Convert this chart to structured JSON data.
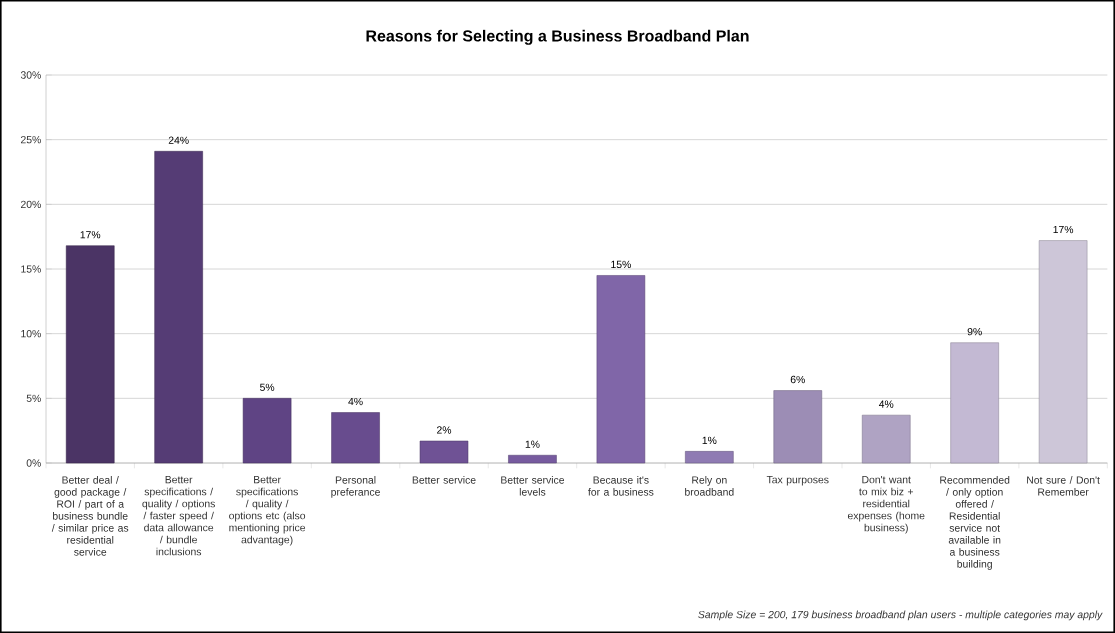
{
  "chart_data": {
    "type": "bar",
    "title": "Reasons for Selecting a Business Broadband Plan",
    "categories": [
      "Better deal / good package / ROI / part of a business bundle / similar price as residential service",
      "Better specifications / quality / options / faster speed / data allowance / bundle inclusions",
      "Better specifications / quality / options etc (also mentioning price advantage)",
      "Personal preferance",
      "Better service",
      "Better service levels",
      "Because it's for a business",
      "Rely on broadband",
      "Tax purposes",
      "Don't want to mix biz + residential expenses (home business)",
      "Recommended / only option offered / Residential service not available in a business building",
      "Not sure / Don't Remember"
    ],
    "values": [
      16.8,
      24.1,
      5.0,
      3.9,
      1.7,
      0.6,
      14.5,
      0.9,
      5.6,
      3.7,
      9.3,
      17.2
    ],
    "value_labels": [
      "17%",
      "24%",
      "5%",
      "4%",
      "2%",
      "1%",
      "15%",
      "1%",
      "6%",
      "4%",
      "9%",
      "17%"
    ],
    "colors": [
      "#4b3465",
      "#553c75",
      "#5f4484",
      "#684c8e",
      "#6f5295",
      "#775b9f",
      "#8066a8",
      "#8f7bb3",
      "#9c8db5",
      "#afa3c3",
      "#c3b9d3",
      "#cdc6d8"
    ],
    "ylim": [
      0,
      30
    ],
    "yticks": [
      {
        "value": 0,
        "label": "0%"
      },
      {
        "value": 5,
        "label": "5%"
      },
      {
        "value": 10,
        "label": "10%"
      },
      {
        "value": 15,
        "label": "15%"
      },
      {
        "value": 20,
        "label": "20%"
      },
      {
        "value": 25,
        "label": "25%"
      },
      {
        "value": 30,
        "label": "30%"
      }
    ],
    "grid": "y",
    "annotations": [
      "Sample Size = 200, 179 business broadband plan users - multiple categories may apply"
    ]
  }
}
